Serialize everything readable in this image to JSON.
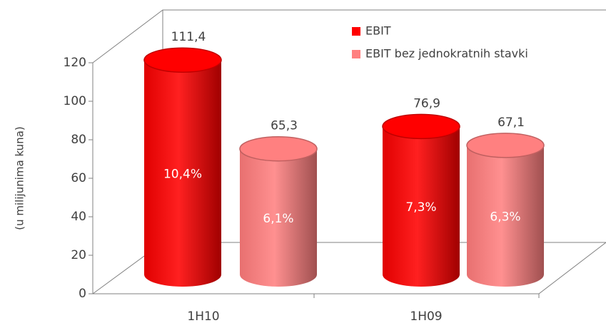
{
  "chart_data": {
    "type": "bar3d",
    "y_axis_label": "(u milijunima kuna)",
    "categories": [
      "1H10",
      "1H09"
    ],
    "series": [
      {
        "name": "EBIT",
        "color": "#ff0000",
        "values": [
          111.4,
          76.9
        ],
        "value_labels": [
          "111,4",
          "76,9"
        ],
        "annotations": [
          "10,4%",
          "7,3%"
        ]
      },
      {
        "name": "EBIT bez jednokratnih stavki",
        "color": "#ff8080",
        "values": [
          65.3,
          67.1
        ],
        "value_labels": [
          "65,3",
          "67,1"
        ],
        "annotations": [
          "6,1%",
          "6,3%"
        ]
      }
    ],
    "ylim": [
      0,
      120
    ],
    "yticks": [
      0,
      20,
      40,
      60,
      80,
      100,
      120
    ],
    "legend": "top-right"
  }
}
